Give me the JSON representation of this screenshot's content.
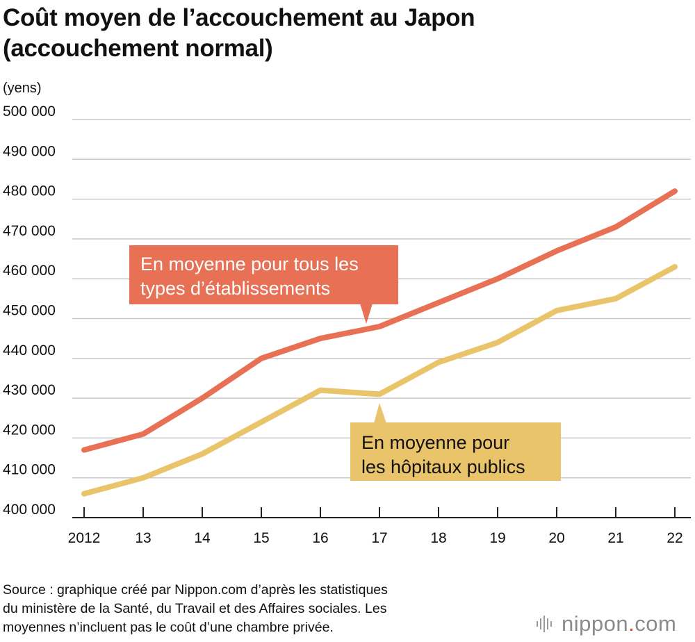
{
  "title": {
    "line1": "Coût moyen de l’accouchement au Japon",
    "line2": "(accouchement normal)"
  },
  "unit_label": "(yens)",
  "callouts": {
    "all": [
      "En moyenne pour tous les",
      "types d’établissements"
    ],
    "public": [
      "En moyenne pour",
      "les hôpitaux publics"
    ]
  },
  "source": [
    "Source : graphique créé par Nippon.com d’après les statistiques",
    "du ministère de la Santé, du Travail et des Affaires sociales. Les",
    "moyennes n’incluent pas le coût d’une chambre privée."
  ],
  "logo": {
    "text": "nippon",
    "dot": ".",
    "suffix": "com"
  },
  "colors": {
    "all": "#e87055",
    "public": "#e9c46a",
    "grid": "#c8c8c8",
    "axis": "#222222"
  },
  "chart_data": {
    "type": "line",
    "x": [
      "2012",
      "13",
      "14",
      "15",
      "16",
      "17",
      "18",
      "19",
      "20",
      "21",
      "22"
    ],
    "ylim": [
      400000,
      500000
    ],
    "yticks": [
      400000,
      410000,
      420000,
      430000,
      440000,
      450000,
      460000,
      470000,
      480000,
      490000,
      500000
    ],
    "ytick_labels": [
      "400 000",
      "410 000",
      "420 000",
      "430 000",
      "440 000",
      "450 000",
      "460 000",
      "470 000",
      "480 000",
      "490 000",
      "500 000"
    ],
    "ylabel": "(yens)",
    "grid": true,
    "series": [
      {
        "name": "En moyenne pour tous les types d’établissements",
        "values": [
          417000,
          421000,
          430000,
          440000,
          445000,
          448000,
          454000,
          460000,
          467000,
          473000,
          482000
        ]
      },
      {
        "name": "En moyenne pour les hôpitaux publics",
        "values": [
          406000,
          410000,
          416000,
          424000,
          432000,
          431000,
          439000,
          444000,
          452000,
          455000,
          463000
        ]
      }
    ]
  }
}
